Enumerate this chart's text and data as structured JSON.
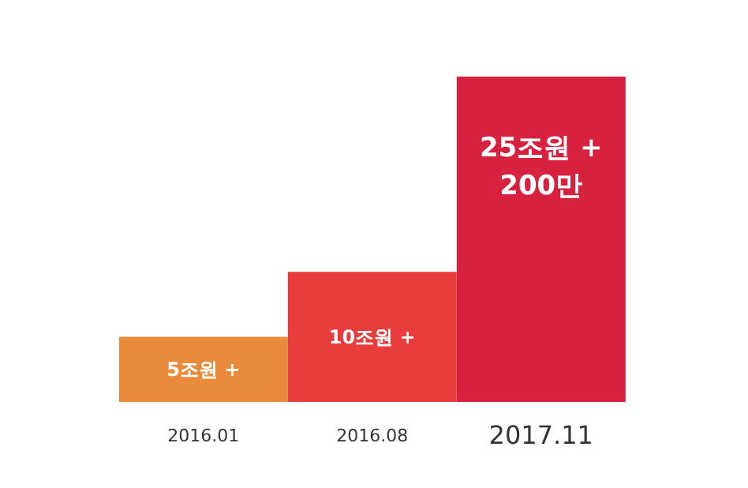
{
  "chart_data": {
    "type": "bar",
    "categories": [
      "2016.01",
      "2016.08",
      "2017.11"
    ],
    "values": [
      5,
      10,
      25
    ],
    "colors": [
      "#e98b3a",
      "#e83c3d",
      "#d7213f"
    ],
    "value_labels": [
      "5조원 +",
      "10조원 +",
      "25조원 +\n200만"
    ]
  }
}
